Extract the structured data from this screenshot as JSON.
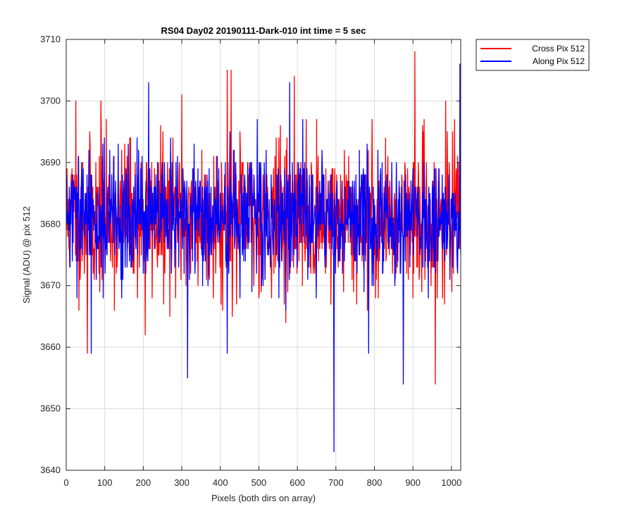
{
  "chart_data": {
    "type": "line",
    "title": "RS04 Day02 20190111-Dark-010 int time = 5 sec",
    "xlabel": "Pixels (both dirs on array)",
    "ylabel": "Signal (ADU) @ pix 512",
    "xlim": [
      0,
      1024
    ],
    "ylim": [
      3640,
      3710
    ],
    "xticks": [
      0,
      100,
      200,
      300,
      400,
      500,
      600,
      700,
      800,
      900,
      1000
    ],
    "yticks": [
      3640,
      3650,
      3660,
      3670,
      3680,
      3690,
      3700,
      3710
    ],
    "grid": true,
    "legend_position": "outside-top-right",
    "series": [
      {
        "name": "Cross Pix 512",
        "color": "#ff0000",
        "x_start": 1,
        "x_end": 1024,
        "mean": 3681,
        "std": 6,
        "seed": 11,
        "extremes": [
          {
            "x": 55,
            "y": 3659
          },
          {
            "x": 90,
            "y": 3700
          },
          {
            "x": 25,
            "y": 3700
          },
          {
            "x": 205,
            "y": 3662
          },
          {
            "x": 300,
            "y": 3701
          },
          {
            "x": 418,
            "y": 3705
          },
          {
            "x": 428,
            "y": 3705
          },
          {
            "x": 592,
            "y": 3704
          },
          {
            "x": 905,
            "y": 3708
          },
          {
            "x": 958,
            "y": 3654
          },
          {
            "x": 985,
            "y": 3700
          },
          {
            "x": 570,
            "y": 3664
          }
        ]
      },
      {
        "name": "Along Pix 512",
        "color": "#0000ff",
        "x_start": 1,
        "x_end": 1024,
        "mean": 3681,
        "std": 5,
        "seed": 29,
        "extremes": [
          {
            "x": 65,
            "y": 3659
          },
          {
            "x": 214,
            "y": 3703
          },
          {
            "x": 315,
            "y": 3655
          },
          {
            "x": 418,
            "y": 3659
          },
          {
            "x": 580,
            "y": 3703
          },
          {
            "x": 695,
            "y": 3643
          },
          {
            "x": 785,
            "y": 3659
          },
          {
            "x": 875,
            "y": 3654
          },
          {
            "x": 1022,
            "y": 3706
          },
          {
            "x": 940,
            "y": 3668
          }
        ]
      }
    ]
  }
}
